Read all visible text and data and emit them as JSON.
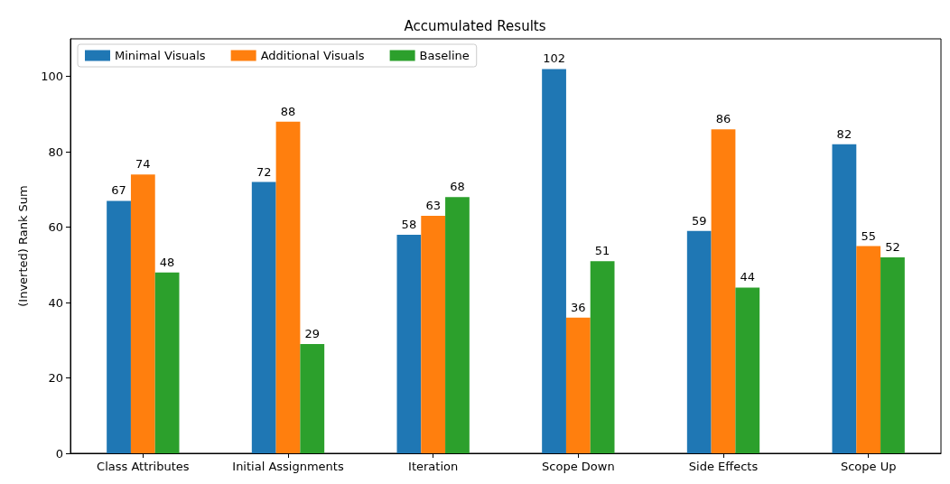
{
  "chart_data": {
    "type": "bar",
    "title": "Accumulated Results",
    "ylabel": "(Inverted) Rank Sum",
    "categories": [
      "Class Attributes",
      "Initial Assignments",
      "Iteration",
      "Scope Down",
      "Side Effects",
      "Scope Up"
    ],
    "series": [
      {
        "name": "Minimal Visuals",
        "color": "#1f77b4",
        "values": [
          67,
          72,
          58,
          102,
          59,
          82
        ]
      },
      {
        "name": "Additional Visuals",
        "color": "#ff7f0e",
        "values": [
          74,
          88,
          63,
          36,
          86,
          55
        ]
      },
      {
        "name": "Baseline",
        "color": "#2ca02c",
        "values": [
          48,
          29,
          68,
          51,
          44,
          52
        ]
      }
    ],
    "ylim": [
      0,
      110
    ],
    "yticks": [
      0,
      20,
      40,
      60,
      80,
      100
    ],
    "grid": false,
    "legend": "top left",
    "data_labels": true
  }
}
